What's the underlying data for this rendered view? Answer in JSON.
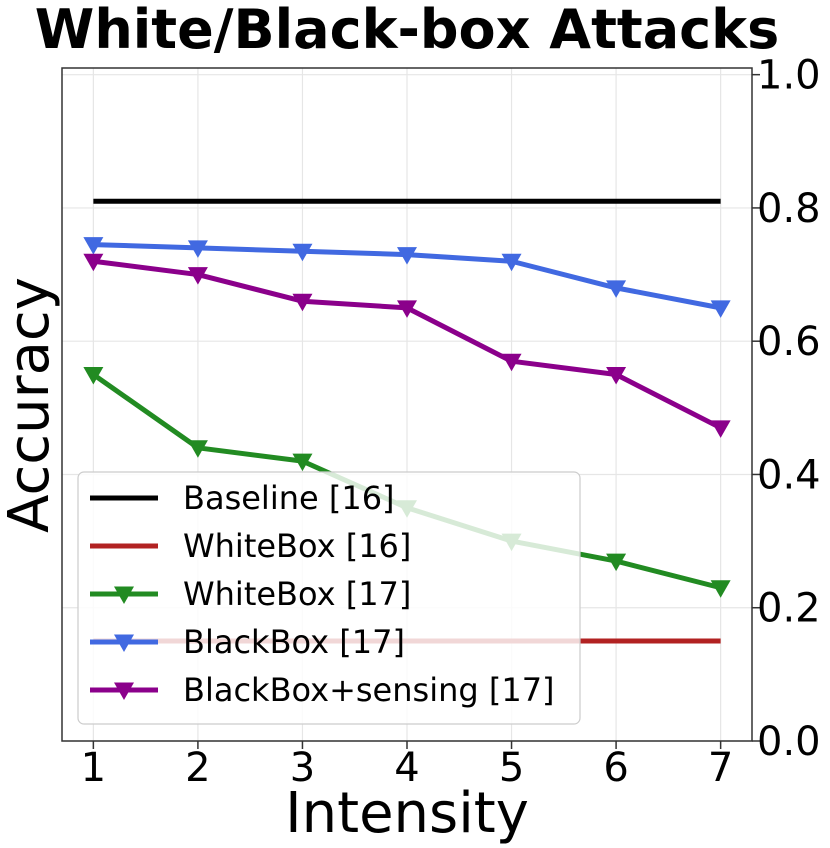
{
  "chart_data": {
    "type": "line",
    "title": "White/Black-box Attacks",
    "xlabel": "Intensity",
    "ylabel": "Accuracy",
    "x": [
      1,
      2,
      3,
      4,
      5,
      6,
      7
    ],
    "xticks": [
      "1",
      "2",
      "3",
      "4",
      "5",
      "6",
      "7"
    ],
    "xlim": [
      0.7,
      7.3
    ],
    "ylim": [
      0.0,
      1.01
    ],
    "yticks": [
      "0.0",
      "0.2",
      "0.4",
      "0.6",
      "0.8",
      "1.0"
    ],
    "y_axis_side": "right",
    "grid": true,
    "legend_position": "lower-left",
    "series": [
      {
        "name": "Baseline [16]",
        "color": "#000000",
        "marker": "none",
        "values": [
          0.81,
          0.81,
          0.81,
          0.81,
          0.81,
          0.81,
          0.81
        ]
      },
      {
        "name": "WhiteBox [16]",
        "color": "#b22222",
        "marker": "none",
        "values": [
          0.15,
          0.15,
          0.15,
          0.15,
          0.15,
          0.15,
          0.15
        ]
      },
      {
        "name": "WhiteBox [17]",
        "color": "#228b22",
        "marker": "triangle-down",
        "values": [
          0.55,
          0.44,
          0.42,
          0.35,
          0.3,
          0.27,
          0.23
        ]
      },
      {
        "name": "BlackBox [17]",
        "color": "#4169e1",
        "marker": "triangle-down",
        "values": [
          0.745,
          0.74,
          0.735,
          0.73,
          0.72,
          0.68,
          0.65
        ]
      },
      {
        "name": "BlackBox+sensing [17]",
        "color": "#8b008b",
        "marker": "triangle-down",
        "values": [
          0.72,
          0.7,
          0.66,
          0.65,
          0.57,
          0.55,
          0.47
        ]
      }
    ]
  }
}
